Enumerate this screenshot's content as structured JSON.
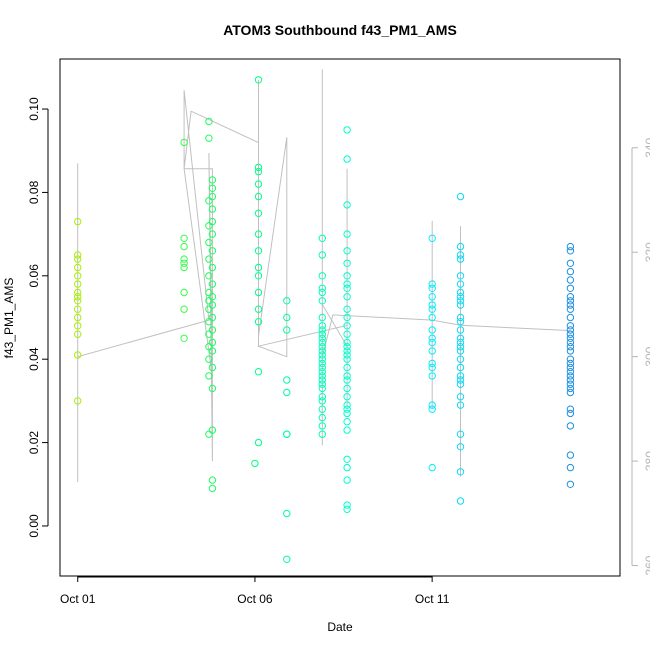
{
  "chart_data": {
    "type": "scatter",
    "title": "ATOM3 Southbound f43_PM1_AMS",
    "xlabel": "Date",
    "ylabel": "f43_PM1_AMS",
    "x_ticks": [
      {
        "value": "Oct 01",
        "day": 1
      },
      {
        "value": "Oct 06",
        "day": 6
      },
      {
        "value": "Oct 11",
        "day": 11
      }
    ],
    "x_range_days": [
      0.5,
      16.3
    ],
    "ylim": [
      -0.012,
      0.112
    ],
    "y_ticks": [
      0.0,
      0.02,
      0.04,
      0.06,
      0.08,
      0.1
    ],
    "y_tick_labels": [
      "0.00",
      "0.02",
      "0.04",
      "0.06",
      "0.08",
      "0.10"
    ],
    "secondary_axis": {
      "ylim": [
        258,
        357
      ],
      "ticks": [
        260,
        280,
        300,
        320,
        340
      ],
      "color": "#b5b5b5"
    },
    "grid": false,
    "legend": "none",
    "marker_color_range": {
      "start": "#a8f000",
      "end": "#1e90e0"
    },
    "series": [
      {
        "points": [
          [
            1.0,
            0.073
          ],
          [
            1.0,
            0.065
          ],
          [
            1.0,
            0.064
          ],
          [
            1.0,
            0.062
          ],
          [
            1.0,
            0.06
          ],
          [
            1.0,
            0.058
          ],
          [
            1.0,
            0.056
          ],
          [
            1.0,
            0.055
          ],
          [
            1.0,
            0.054
          ],
          [
            1.0,
            0.052
          ],
          [
            1.0,
            0.05
          ],
          [
            1.0,
            0.048
          ],
          [
            1.0,
            0.046
          ],
          [
            1.0,
            0.041
          ],
          [
            1.0,
            0.03
          ],
          [
            4.0,
            0.092
          ],
          [
            4.0,
            0.069
          ],
          [
            4.0,
            0.067
          ],
          [
            4.0,
            0.064
          ],
          [
            4.0,
            0.063
          ],
          [
            4.0,
            0.062
          ],
          [
            4.0,
            0.056
          ],
          [
            4.0,
            0.052
          ],
          [
            4.0,
            0.045
          ],
          [
            4.7,
            0.097
          ],
          [
            4.7,
            0.093
          ],
          [
            4.8,
            0.083
          ],
          [
            4.8,
            0.081
          ],
          [
            4.8,
            0.079
          ],
          [
            4.7,
            0.078
          ],
          [
            4.8,
            0.076
          ],
          [
            4.8,
            0.073
          ],
          [
            4.7,
            0.072
          ],
          [
            4.8,
            0.07
          ],
          [
            4.7,
            0.068
          ],
          [
            4.8,
            0.066
          ],
          [
            4.7,
            0.064
          ],
          [
            4.8,
            0.062
          ],
          [
            4.7,
            0.06
          ],
          [
            4.8,
            0.058
          ],
          [
            4.7,
            0.056
          ],
          [
            4.8,
            0.055
          ],
          [
            4.7,
            0.054
          ],
          [
            4.8,
            0.053
          ],
          [
            4.7,
            0.052
          ],
          [
            4.8,
            0.05
          ],
          [
            4.7,
            0.049
          ],
          [
            4.8,
            0.047
          ],
          [
            4.7,
            0.046
          ],
          [
            4.8,
            0.044
          ],
          [
            4.7,
            0.043
          ],
          [
            4.8,
            0.042
          ],
          [
            4.7,
            0.04
          ],
          [
            4.8,
            0.038
          ],
          [
            4.7,
            0.036
          ],
          [
            4.8,
            0.033
          ],
          [
            4.8,
            0.023
          ],
          [
            4.7,
            0.022
          ],
          [
            4.8,
            0.011
          ],
          [
            4.8,
            0.009
          ],
          [
            6.1,
            0.107
          ],
          [
            6.1,
            0.086
          ],
          [
            6.1,
            0.085
          ],
          [
            6.1,
            0.082
          ],
          [
            6.1,
            0.079
          ],
          [
            6.1,
            0.075
          ],
          [
            6.1,
            0.07
          ],
          [
            6.1,
            0.066
          ],
          [
            6.1,
            0.062
          ],
          [
            6.1,
            0.06
          ],
          [
            6.1,
            0.056
          ],
          [
            6.1,
            0.052
          ],
          [
            6.1,
            0.049
          ],
          [
            6.1,
            0.037
          ],
          [
            6.1,
            0.02
          ],
          [
            6.0,
            0.015
          ],
          [
            6.9,
            0.054
          ],
          [
            6.9,
            0.05
          ],
          [
            6.9,
            0.047
          ],
          [
            6.9,
            0.035
          ],
          [
            6.9,
            0.032
          ],
          [
            6.9,
            0.022
          ],
          [
            6.9,
            0.022
          ],
          [
            6.9,
            0.003
          ],
          [
            6.9,
            -0.008
          ],
          [
            7.9,
            0.069
          ],
          [
            7.9,
            0.065
          ],
          [
            7.9,
            0.06
          ],
          [
            7.9,
            0.057
          ],
          [
            7.9,
            0.056
          ],
          [
            7.9,
            0.054
          ],
          [
            7.9,
            0.05
          ],
          [
            7.9,
            0.048
          ],
          [
            7.9,
            0.047
          ],
          [
            7.9,
            0.046
          ],
          [
            7.9,
            0.045
          ],
          [
            7.9,
            0.044
          ],
          [
            7.9,
            0.043
          ],
          [
            7.9,
            0.042
          ],
          [
            7.9,
            0.041
          ],
          [
            7.9,
            0.04
          ],
          [
            7.9,
            0.039
          ],
          [
            7.9,
            0.038
          ],
          [
            7.9,
            0.037
          ],
          [
            7.9,
            0.036
          ],
          [
            7.9,
            0.035
          ],
          [
            7.9,
            0.034
          ],
          [
            7.9,
            0.033
          ],
          [
            7.9,
            0.031
          ],
          [
            7.9,
            0.03
          ],
          [
            7.9,
            0.028
          ],
          [
            7.9,
            0.026
          ],
          [
            7.9,
            0.024
          ],
          [
            7.9,
            0.022
          ],
          [
            8.6,
            0.095
          ],
          [
            8.6,
            0.088
          ],
          [
            8.6,
            0.077
          ],
          [
            8.6,
            0.07
          ],
          [
            8.6,
            0.066
          ],
          [
            8.6,
            0.063
          ],
          [
            8.6,
            0.06
          ],
          [
            8.6,
            0.058
          ],
          [
            8.6,
            0.057
          ],
          [
            8.6,
            0.055
          ],
          [
            8.6,
            0.052
          ],
          [
            8.6,
            0.05
          ],
          [
            8.6,
            0.048
          ],
          [
            8.6,
            0.046
          ],
          [
            8.6,
            0.044
          ],
          [
            8.6,
            0.043
          ],
          [
            8.6,
            0.042
          ],
          [
            8.6,
            0.041
          ],
          [
            8.6,
            0.04
          ],
          [
            8.6,
            0.038
          ],
          [
            8.6,
            0.036
          ],
          [
            8.6,
            0.035
          ],
          [
            8.6,
            0.033
          ],
          [
            8.6,
            0.031
          ],
          [
            8.6,
            0.029
          ],
          [
            8.6,
            0.028
          ],
          [
            8.6,
            0.027
          ],
          [
            8.6,
            0.025
          ],
          [
            8.6,
            0.023
          ],
          [
            8.6,
            0.016
          ],
          [
            8.6,
            0.014
          ],
          [
            8.6,
            0.011
          ],
          [
            8.6,
            0.005
          ],
          [
            8.6,
            0.004
          ],
          [
            11.0,
            0.069
          ],
          [
            11.0,
            0.058
          ],
          [
            11.0,
            0.057
          ],
          [
            11.0,
            0.055
          ],
          [
            11.0,
            0.053
          ],
          [
            11.0,
            0.052
          ],
          [
            11.0,
            0.05
          ],
          [
            11.0,
            0.047
          ],
          [
            11.0,
            0.045
          ],
          [
            11.0,
            0.044
          ],
          [
            11.0,
            0.042
          ],
          [
            11.0,
            0.039
          ],
          [
            11.0,
            0.038
          ],
          [
            11.0,
            0.036
          ],
          [
            11.0,
            0.029
          ],
          [
            11.0,
            0.028
          ],
          [
            11.0,
            0.014
          ],
          [
            11.8,
            0.079
          ],
          [
            11.8,
            0.067
          ],
          [
            11.8,
            0.065
          ],
          [
            11.8,
            0.064
          ],
          [
            11.8,
            0.06
          ],
          [
            11.8,
            0.058
          ],
          [
            11.8,
            0.056
          ],
          [
            11.8,
            0.055
          ],
          [
            11.8,
            0.054
          ],
          [
            11.8,
            0.053
          ],
          [
            11.8,
            0.05
          ],
          [
            11.8,
            0.049
          ],
          [
            11.8,
            0.047
          ],
          [
            11.8,
            0.045
          ],
          [
            11.8,
            0.044
          ],
          [
            11.8,
            0.043
          ],
          [
            11.8,
            0.042
          ],
          [
            11.8,
            0.04
          ],
          [
            11.8,
            0.038
          ],
          [
            11.8,
            0.036
          ],
          [
            11.8,
            0.035
          ],
          [
            11.8,
            0.034
          ],
          [
            11.8,
            0.031
          ],
          [
            11.8,
            0.029
          ],
          [
            11.8,
            0.022
          ],
          [
            11.8,
            0.019
          ],
          [
            11.8,
            0.013
          ],
          [
            11.8,
            0.006
          ],
          [
            14.9,
            0.067
          ],
          [
            14.9,
            0.066
          ],
          [
            14.9,
            0.063
          ],
          [
            14.9,
            0.061
          ],
          [
            14.9,
            0.059
          ],
          [
            14.9,
            0.057
          ],
          [
            14.9,
            0.055
          ],
          [
            14.9,
            0.054
          ],
          [
            14.9,
            0.053
          ],
          [
            14.9,
            0.052
          ],
          [
            14.9,
            0.05
          ],
          [
            14.9,
            0.048
          ],
          [
            14.9,
            0.047
          ],
          [
            14.9,
            0.046
          ],
          [
            14.9,
            0.045
          ],
          [
            14.9,
            0.044
          ],
          [
            14.9,
            0.043
          ],
          [
            14.9,
            0.042
          ],
          [
            14.9,
            0.04
          ],
          [
            14.9,
            0.039
          ],
          [
            14.9,
            0.038
          ],
          [
            14.9,
            0.037
          ],
          [
            14.9,
            0.036
          ],
          [
            14.9,
            0.035
          ],
          [
            14.9,
            0.034
          ],
          [
            14.9,
            0.033
          ],
          [
            14.9,
            0.032
          ],
          [
            14.9,
            0.028
          ],
          [
            14.9,
            0.027
          ],
          [
            14.9,
            0.024
          ],
          [
            14.9,
            0.017
          ],
          [
            14.9,
            0.014
          ],
          [
            14.9,
            0.01
          ]
        ]
      },
      {
        "axis": "secondary",
        "color": "#c0c0c0",
        "line": [
          [
            1.0,
            300
          ],
          [
            1.0,
            337
          ],
          [
            1.0,
            276
          ],
          [
            1.0,
            334
          ],
          [
            1.0,
            300
          ],
          [
            4.7,
            307
          ],
          [
            4.0,
            351
          ],
          [
            4.0,
            336
          ],
          [
            4.8,
            296
          ],
          [
            4.7,
            339
          ],
          [
            4.8,
            280
          ],
          [
            4.8,
            336
          ],
          [
            4.0,
            336
          ],
          [
            4.2,
            347
          ],
          [
            6.1,
            341
          ],
          [
            6.1,
            353
          ],
          [
            6.1,
            302
          ],
          [
            6.1,
            345
          ],
          [
            6.1,
            304
          ],
          [
            6.9,
            342
          ],
          [
            6.9,
            300
          ],
          [
            6.1,
            302
          ],
          [
            8.6,
            306
          ],
          [
            8.6,
            336
          ],
          [
            8.6,
            290
          ],
          [
            8.6,
            331
          ],
          [
            8.6,
            302
          ],
          [
            7.9,
            310
          ],
          [
            7.9,
            300
          ],
          [
            7.9,
            355
          ],
          [
            7.9,
            283
          ],
          [
            7.9,
            328
          ],
          [
            7.9,
            300
          ],
          [
            8.2,
            308
          ],
          [
            11.0,
            307
          ],
          [
            11.0,
            326
          ],
          [
            11.0,
            290
          ],
          [
            11.0,
            322
          ],
          [
            11.0,
            307
          ],
          [
            11.8,
            306
          ],
          [
            11.8,
            325
          ],
          [
            11.8,
            277
          ],
          [
            11.8,
            322
          ],
          [
            11.8,
            306
          ],
          [
            14.9,
            305
          ]
        ]
      }
    ]
  }
}
